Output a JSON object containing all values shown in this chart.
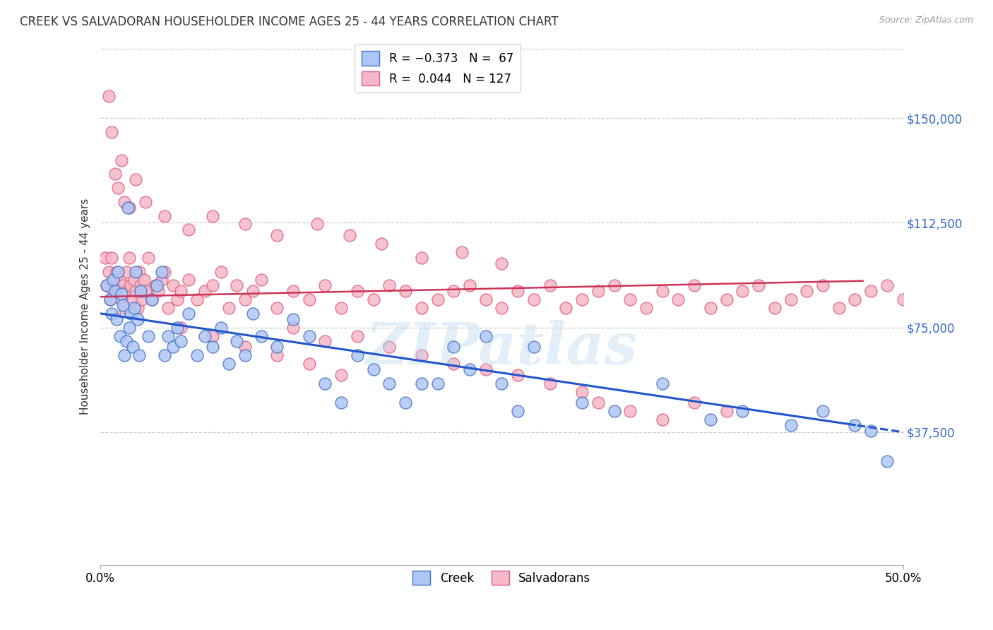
{
  "title": "CREEK VS SALVADORAN HOUSEHOLDER INCOME AGES 25 - 44 YEARS CORRELATION CHART",
  "source": "Source: ZipAtlas.com",
  "ylabel": "Householder Income Ages 25 - 44 years",
  "xlim": [
    0.0,
    0.5
  ],
  "ylim": [
    -10000,
    175000
  ],
  "yticks": [
    37500,
    75000,
    112500,
    150000
  ],
  "ytick_labels": [
    "$37,500",
    "$75,000",
    "$112,500",
    "$150,000"
  ],
  "xtick_positions": [
    0.0,
    0.5
  ],
  "xtick_labels": [
    "0.0%",
    "50.0%"
  ],
  "creek_color": "#aec6f5",
  "salvadoran_color": "#f5b8c8",
  "creek_edge_color": "#4472c4",
  "salvadoran_edge_color": "#e06080",
  "creek_line_color": "#2255cc",
  "salvadoran_line_color": "#cc3355",
  "creek_R": -0.373,
  "creek_N": 67,
  "salvadoran_R": 0.044,
  "salvadoran_N": 127,
  "background_color": "#ffffff",
  "grid_color": "#cccccc",
  "watermark": "ZIPatlas",
  "creek_intercept": 80000,
  "creek_slope": -85000,
  "salvadoran_intercept": 86000,
  "salvadoran_slope": 12000,
  "creek_x": [
    0.004,
    0.006,
    0.007,
    0.008,
    0.009,
    0.01,
    0.011,
    0.012,
    0.013,
    0.014,
    0.015,
    0.016,
    0.017,
    0.018,
    0.019,
    0.02,
    0.021,
    0.022,
    0.023,
    0.024,
    0.025,
    0.03,
    0.032,
    0.035,
    0.038,
    0.04,
    0.042,
    0.045,
    0.048,
    0.05,
    0.055,
    0.06,
    0.065,
    0.07,
    0.075,
    0.08,
    0.085,
    0.09,
    0.095,
    0.1,
    0.11,
    0.12,
    0.13,
    0.14,
    0.15,
    0.16,
    0.17,
    0.18,
    0.19,
    0.2,
    0.21,
    0.22,
    0.23,
    0.24,
    0.25,
    0.26,
    0.27,
    0.3,
    0.32,
    0.35,
    0.38,
    0.4,
    0.43,
    0.45,
    0.47,
    0.48,
    0.49
  ],
  "creek_y": [
    90000,
    85000,
    80000,
    92000,
    88000,
    78000,
    95000,
    72000,
    87000,
    83000,
    65000,
    70000,
    118000,
    75000,
    80000,
    68000,
    82000,
    95000,
    78000,
    65000,
    88000,
    72000,
    85000,
    90000,
    95000,
    65000,
    72000,
    68000,
    75000,
    70000,
    80000,
    65000,
    72000,
    68000,
    75000,
    62000,
    70000,
    65000,
    80000,
    72000,
    68000,
    78000,
    72000,
    55000,
    48000,
    65000,
    60000,
    55000,
    48000,
    55000,
    55000,
    68000,
    60000,
    72000,
    55000,
    45000,
    68000,
    48000,
    45000,
    55000,
    42000,
    45000,
    40000,
    45000,
    40000,
    38000,
    27000
  ],
  "salvadoran_x": [
    0.003,
    0.004,
    0.005,
    0.006,
    0.007,
    0.008,
    0.009,
    0.01,
    0.011,
    0.012,
    0.013,
    0.014,
    0.015,
    0.016,
    0.017,
    0.018,
    0.019,
    0.02,
    0.021,
    0.022,
    0.023,
    0.024,
    0.025,
    0.026,
    0.027,
    0.028,
    0.03,
    0.032,
    0.034,
    0.036,
    0.038,
    0.04,
    0.042,
    0.045,
    0.048,
    0.05,
    0.055,
    0.06,
    0.065,
    0.07,
    0.075,
    0.08,
    0.085,
    0.09,
    0.095,
    0.1,
    0.11,
    0.12,
    0.13,
    0.14,
    0.15,
    0.16,
    0.17,
    0.18,
    0.19,
    0.2,
    0.21,
    0.22,
    0.23,
    0.24,
    0.25,
    0.26,
    0.27,
    0.28,
    0.29,
    0.3,
    0.31,
    0.32,
    0.33,
    0.34,
    0.35,
    0.36,
    0.37,
    0.38,
    0.39,
    0.4,
    0.41,
    0.42,
    0.43,
    0.44,
    0.45,
    0.46,
    0.47,
    0.48,
    0.49,
    0.5,
    0.005,
    0.007,
    0.009,
    0.011,
    0.013,
    0.015,
    0.018,
    0.022,
    0.028,
    0.04,
    0.055,
    0.07,
    0.09,
    0.11,
    0.135,
    0.155,
    0.175,
    0.2,
    0.225,
    0.25,
    0.12,
    0.14,
    0.16,
    0.18,
    0.2,
    0.22,
    0.24,
    0.26,
    0.28,
    0.3,
    0.31,
    0.33,
    0.35,
    0.37,
    0.39,
    0.05,
    0.07,
    0.09,
    0.11,
    0.13,
    0.15
  ],
  "salvadoran_y": [
    100000,
    90000,
    95000,
    85000,
    100000,
    88000,
    92000,
    95000,
    88000,
    92000,
    85000,
    90000,
    82000,
    95000,
    88000,
    100000,
    90000,
    85000,
    92000,
    88000,
    82000,
    95000,
    90000,
    85000,
    92000,
    88000,
    100000,
    85000,
    90000,
    88000,
    92000,
    95000,
    82000,
    90000,
    85000,
    88000,
    92000,
    85000,
    88000,
    90000,
    95000,
    82000,
    90000,
    85000,
    88000,
    92000,
    82000,
    88000,
    85000,
    90000,
    82000,
    88000,
    85000,
    90000,
    88000,
    82000,
    85000,
    88000,
    90000,
    85000,
    82000,
    88000,
    85000,
    90000,
    82000,
    85000,
    88000,
    90000,
    85000,
    82000,
    88000,
    85000,
    90000,
    82000,
    85000,
    88000,
    90000,
    82000,
    85000,
    88000,
    90000,
    82000,
    85000,
    88000,
    90000,
    85000,
    158000,
    145000,
    130000,
    125000,
    135000,
    120000,
    118000,
    128000,
    120000,
    115000,
    110000,
    115000,
    112000,
    108000,
    112000,
    108000,
    105000,
    100000,
    102000,
    98000,
    75000,
    70000,
    72000,
    68000,
    65000,
    62000,
    60000,
    58000,
    55000,
    52000,
    48000,
    45000,
    42000,
    48000,
    45000,
    75000,
    72000,
    68000,
    65000,
    62000,
    58000
  ]
}
